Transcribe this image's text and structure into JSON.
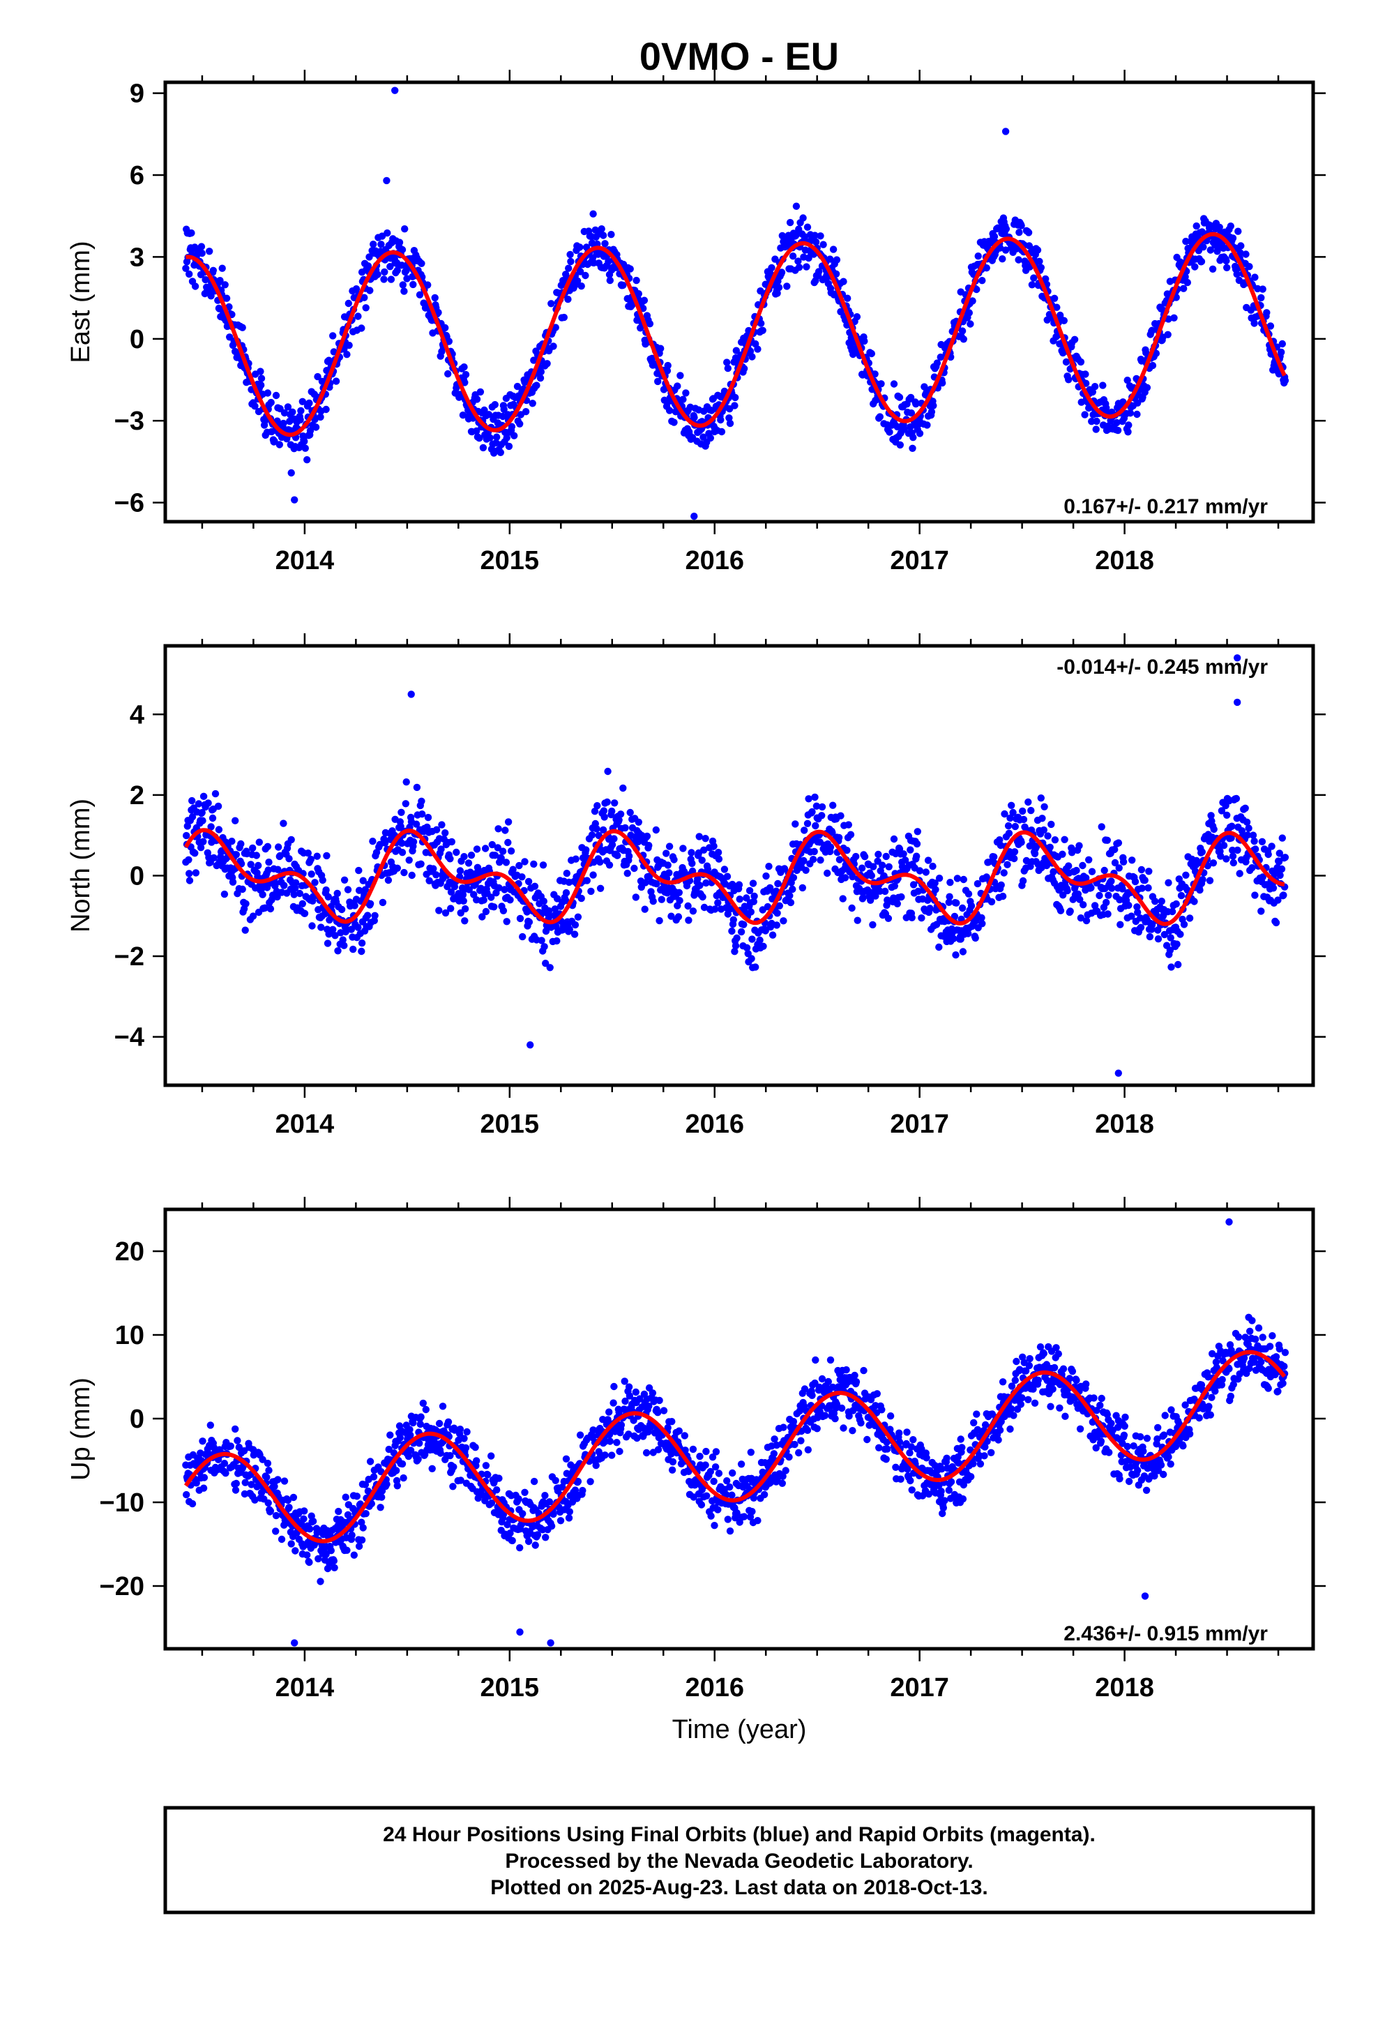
{
  "chart_data": {
    "type": "scatter",
    "title": "0VMO - EU",
    "xlabel": "Time (year)",
    "x_range": [
      2013.32,
      2018.92
    ],
    "x_ticks": [
      2014,
      2015,
      2016,
      2017,
      2018
    ],
    "data_start": 2013.42,
    "data_end": 2018.785,
    "point_color": "#0000ff",
    "fit_color": "#ff0000",
    "panels": [
      {
        "ylabel": "East (mm)",
        "ylim": [
          -6.7,
          9.4
        ],
        "yticks": [
          -6,
          -3,
          0,
          3,
          6,
          9
        ],
        "rate_text": "0.167+/- 0.217 mm/yr",
        "rate_pos": "bottom-right",
        "fit": {
          "a": 0.13,
          "rate": 0.167,
          "annual_amp": 3.3,
          "annual_peak": 0.43,
          "semi_amp": 0.0,
          "semi_peak": 0.0
        },
        "noise": 0.9,
        "outliers": [
          [
            2014.44,
            9.1
          ],
          [
            2014.4,
            5.8
          ],
          [
            2013.95,
            -5.9
          ],
          [
            2015.9,
            -6.5
          ],
          [
            2017.42,
            7.6
          ]
        ]
      },
      {
        "ylabel": "North (mm)",
        "ylim": [
          -5.2,
          5.7
        ],
        "yticks": [
          -4,
          -2,
          0,
          2,
          4
        ],
        "rate_text": "-0.014+/- 0.245 mm/yr",
        "rate_pos": "top-right",
        "fit": {
          "a": -0.05,
          "rate": -0.014,
          "annual_amp": 0.75,
          "annual_peak": 0.6,
          "semi_amp": 0.55,
          "semi_peak": 0.48
        },
        "noise": 0.95,
        "outliers": [
          [
            2014.52,
            4.5
          ],
          [
            2018.55,
            5.4
          ],
          [
            2017.97,
            -4.9
          ],
          [
            2015.1,
            -4.2
          ],
          [
            2018.55,
            4.3
          ]
        ]
      },
      {
        "ylabel": "Up (mm)",
        "ylim": [
          -27.5,
          25.0
        ],
        "yticks": [
          -20,
          -10,
          0,
          10,
          20
        ],
        "rate_text": "2.436+/- 0.915 mm/yr",
        "rate_pos": "bottom-right",
        "fit": {
          "a": -4.2,
          "rate": 2.436,
          "annual_amp": 5.8,
          "annual_peak": 0.6,
          "semi_amp": 0.0,
          "semi_peak": 0.0
        },
        "noise": 3.4,
        "outliers": [
          [
            2018.51,
            23.5
          ],
          [
            2013.95,
            -26.8
          ],
          [
            2015.05,
            -25.5
          ],
          [
            2015.2,
            -26.8
          ],
          [
            2018.1,
            -21.2
          ]
        ]
      }
    ]
  },
  "footer": {
    "line1": "24 Hour Positions Using Final Orbits (blue) and Rapid Orbits (magenta).",
    "line2": "Processed by the Nevada Geodetic Laboratory.",
    "line3": "Plotted on 2025-Aug-23. Last data on 2018-Oct-13."
  }
}
